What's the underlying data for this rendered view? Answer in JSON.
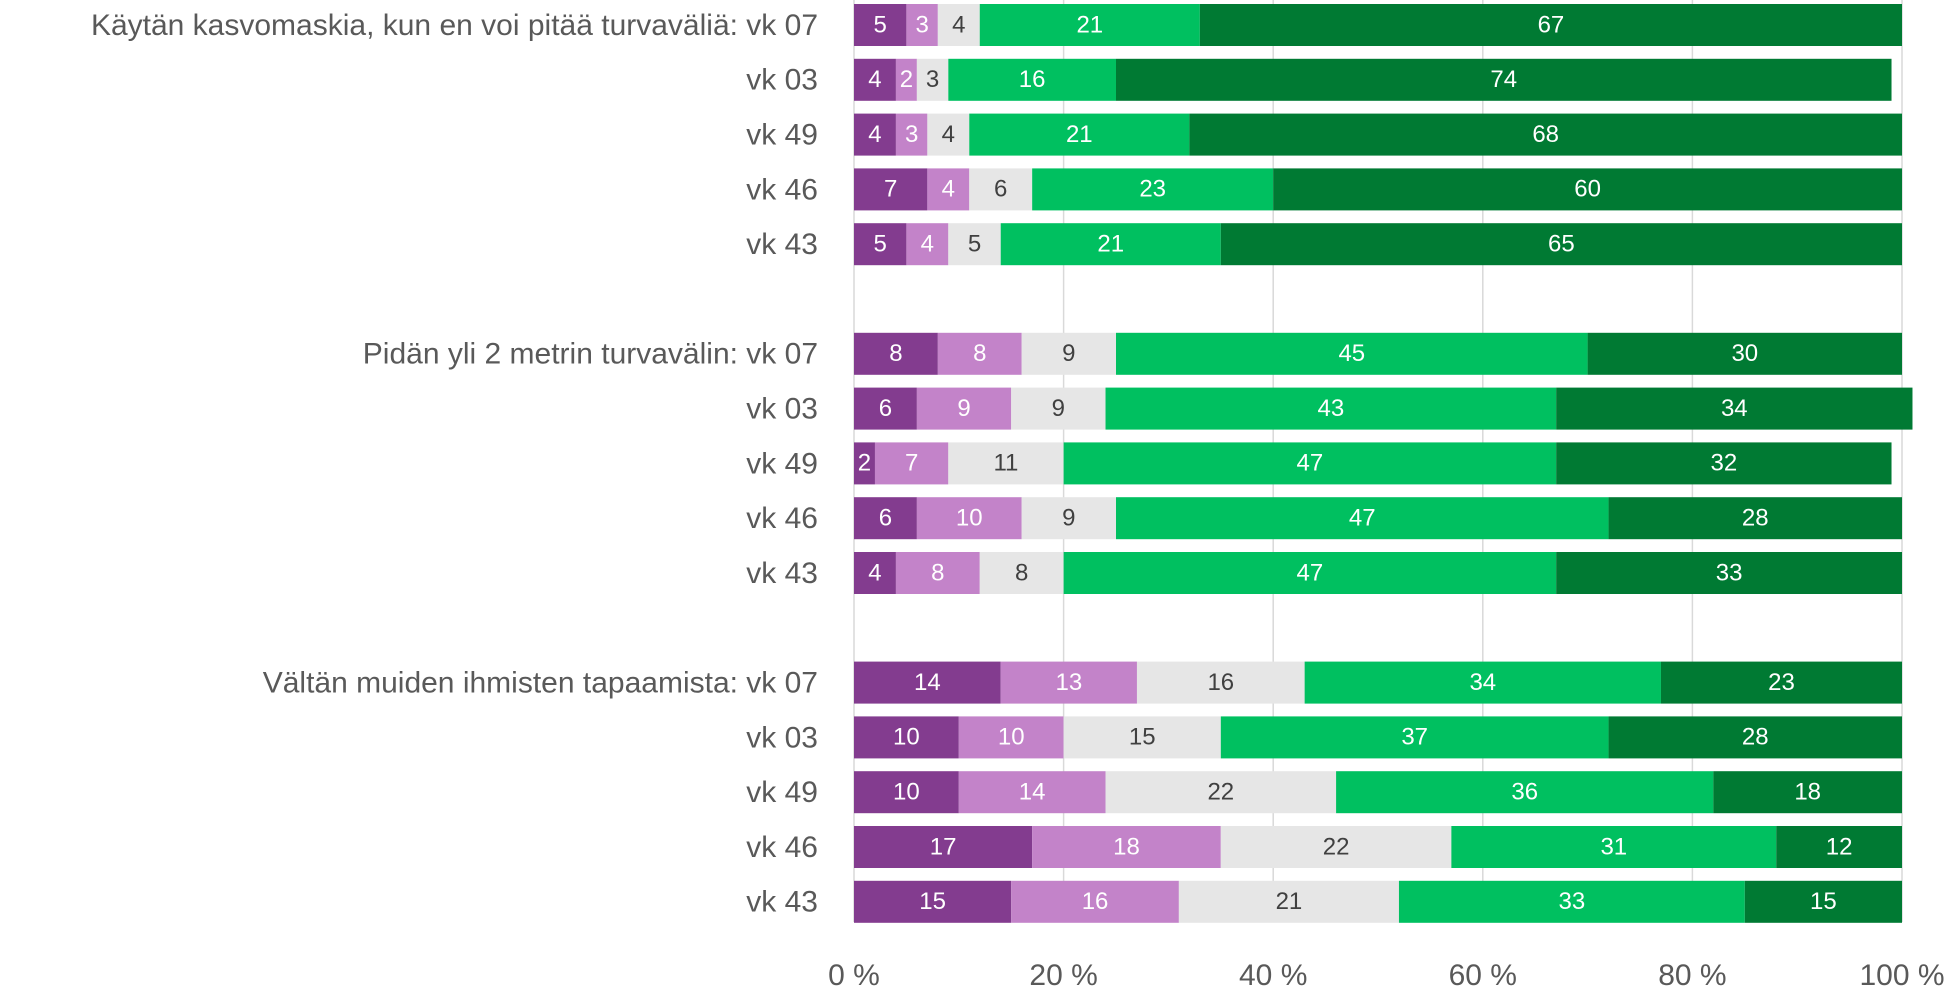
{
  "chart_data": {
    "type": "stacked-bar-horizontal",
    "categories": [
      "Käytän kasvomaskia, kun en voi pitää turvaväliä: vk 07",
      "vk 03",
      "vk 49",
      "vk 46",
      "vk 43",
      null,
      "Pidän yli 2 metrin turvavälin: vk 07",
      "vk 03",
      "vk 49",
      "vk 46",
      "vk 43",
      null,
      "Vältän muiden ihmisten tapaamista: vk 07",
      "vk 03",
      "vk 49",
      "vk 46",
      "vk 43"
    ],
    "series": [
      {
        "color": "#833c8f",
        "values": [
          5,
          4,
          4,
          7,
          5,
          null,
          8,
          6,
          2,
          6,
          4,
          null,
          14,
          10,
          10,
          17,
          15
        ]
      },
      {
        "color": "#c383c9",
        "values": [
          3,
          2,
          3,
          4,
          4,
          null,
          8,
          9,
          7,
          10,
          8,
          null,
          13,
          10,
          14,
          18,
          16
        ]
      },
      {
        "color": "#e6e6e6",
        "values": [
          4,
          3,
          4,
          6,
          5,
          null,
          9,
          9,
          11,
          9,
          8,
          null,
          16,
          15,
          22,
          22,
          21
        ]
      },
      {
        "color": "#00c060",
        "values": [
          21,
          16,
          21,
          23,
          21,
          null,
          45,
          43,
          47,
          47,
          47,
          null,
          34,
          37,
          36,
          31,
          33
        ]
      },
      {
        "color": "#007a33",
        "values": [
          67,
          74,
          68,
          60,
          65,
          null,
          30,
          34,
          32,
          28,
          33,
          null,
          23,
          28,
          18,
          12,
          15
        ]
      }
    ],
    "xlim": [
      0,
      100
    ],
    "xticks": [
      {
        "value": 0,
        "label": "0 %"
      },
      {
        "value": 20,
        "label": "20 %"
      },
      {
        "value": 40,
        "label": "40 %"
      },
      {
        "value": 60,
        "label": "60 %"
      },
      {
        "value": 80,
        "label": "80 %"
      },
      {
        "value": 100,
        "label": "100 %"
      }
    ],
    "grid": true
  }
}
